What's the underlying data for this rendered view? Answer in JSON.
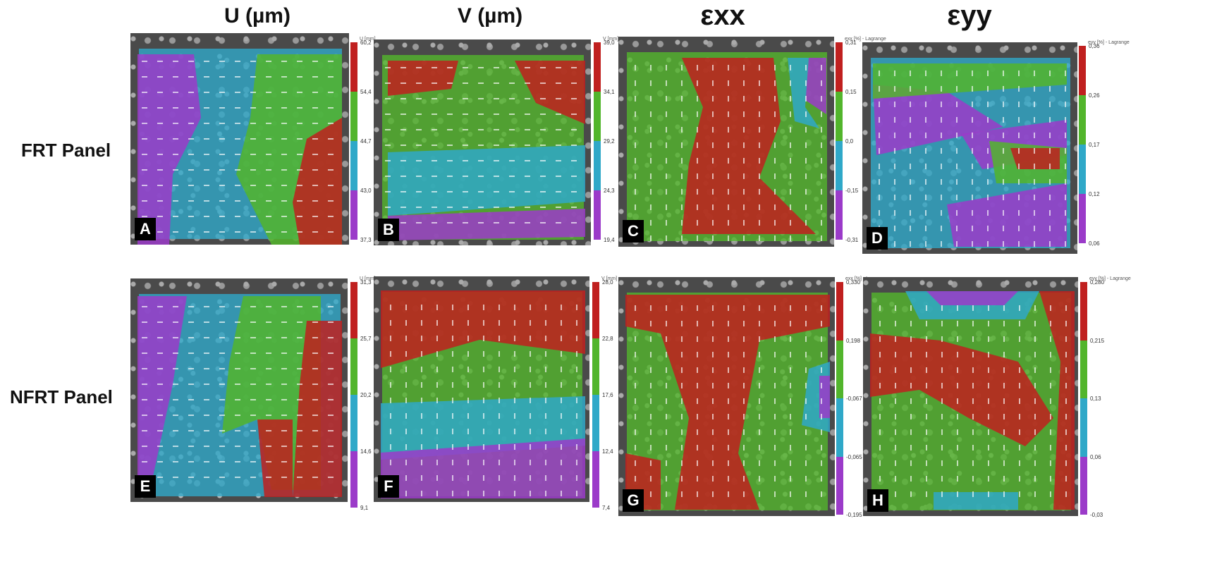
{
  "columns": [
    {
      "id": "u",
      "label": "U (µm)"
    },
    {
      "id": "v",
      "label": "V (µm)"
    },
    {
      "id": "exx",
      "label": "εxx"
    },
    {
      "id": "eyy",
      "label": "εyy"
    }
  ],
  "rows": [
    {
      "id": "frt",
      "label": "FRT Panel"
    },
    {
      "id": "nfrt",
      "label": "NFRT Panel"
    }
  ],
  "palette": {
    "red": "#c0201f",
    "green": "#52b52c",
    "cyan": "#2fa8c8",
    "purple": "#9b3bc9"
  },
  "panels": [
    {
      "letter": "A",
      "cbar_title": "U [mm]",
      "ticks": [
        "60,2",
        "54,4",
        "44,7",
        "43,0",
        "37,3"
      ]
    },
    {
      "letter": "B",
      "cbar_title": "V [mm]",
      "ticks": [
        "39,0",
        "34,1",
        "29,2",
        "24,3",
        "19,4"
      ]
    },
    {
      "letter": "C",
      "cbar_title": "exx [%] - Lagrange",
      "ticks": [
        "0,31",
        "0,15",
        "0,0",
        "-0,15",
        "-0,31"
      ]
    },
    {
      "letter": "D",
      "cbar_title": "eyy [%] - Lagrange",
      "ticks": [
        "0,36",
        "0,26",
        "0,17",
        "0,12",
        "0,06"
      ]
    },
    {
      "letter": "E",
      "cbar_title": "U [mm]",
      "ticks": [
        "31,3",
        "25,7",
        "20,2",
        "14,6",
        "9,1"
      ]
    },
    {
      "letter": "F",
      "cbar_title": "V [mm]",
      "ticks": [
        "28,0",
        "22,8",
        "17,6",
        "12,4",
        "7,4"
      ]
    },
    {
      "letter": "G",
      "cbar_title": "exx [%] - Lagrange",
      "ticks": [
        "0,330",
        "0,198",
        "-0,067",
        "-0,065",
        "-0,195"
      ]
    },
    {
      "letter": "H",
      "cbar_title": "eyy [%] - Lagrange",
      "ticks": [
        "0,280",
        "0,215",
        "0,13",
        "0,06",
        "-0,03"
      ]
    }
  ]
}
